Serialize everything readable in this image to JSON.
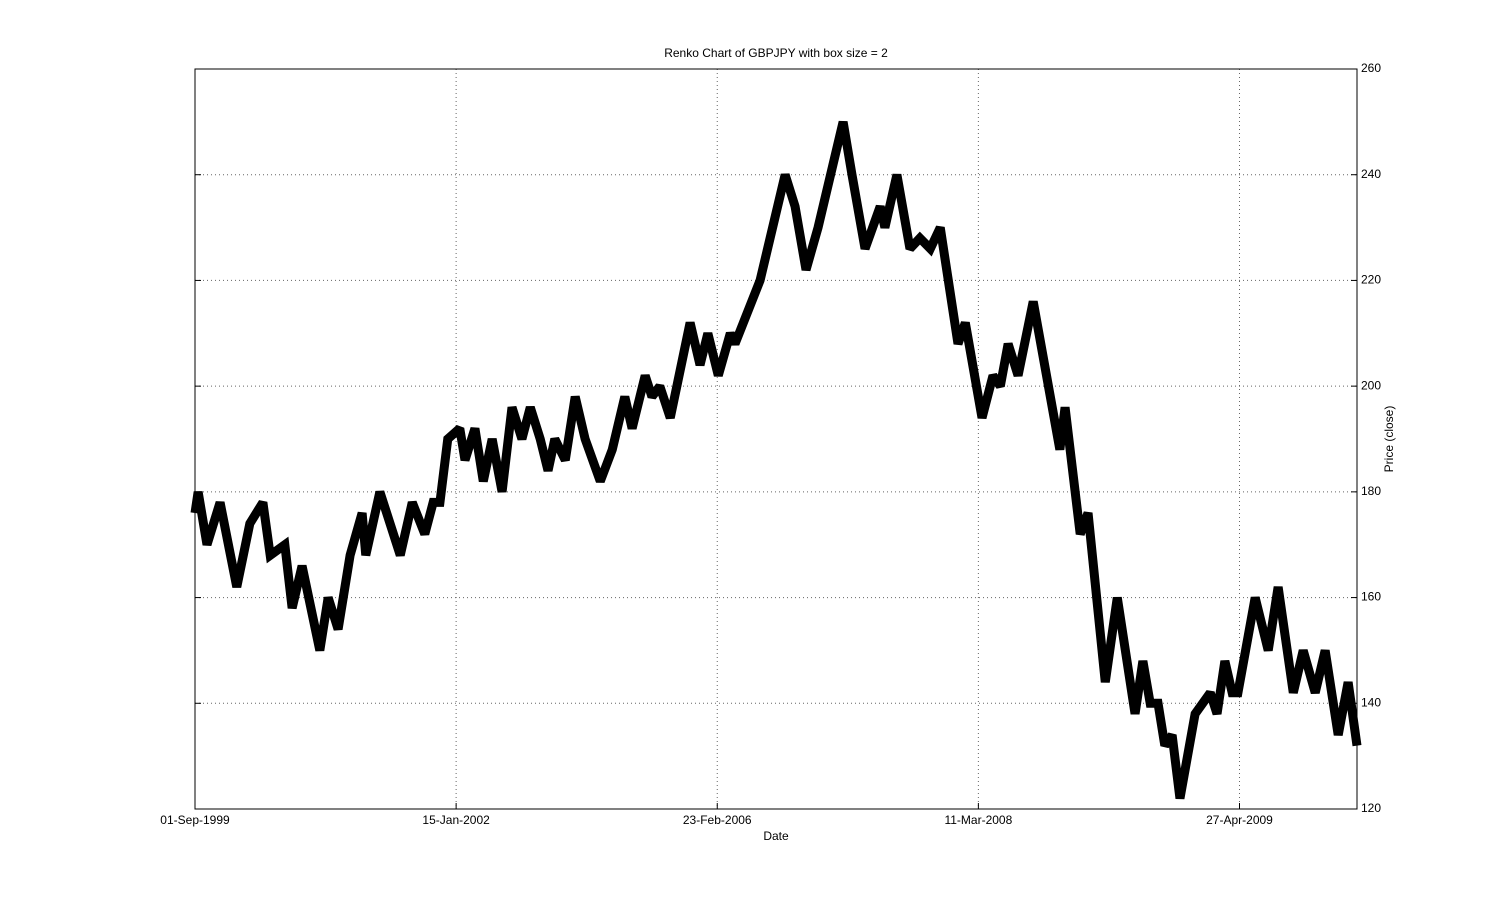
{
  "chart_data": {
    "type": "line",
    "title": "Renko Chart of GBPJPY with box size = 2",
    "x_label": "Date",
    "y_label": "Price (close)",
    "x": [
      0,
      6,
      23,
      48,
      80,
      105,
      130,
      144,
      172,
      186,
      205,
      239,
      255,
      274,
      297,
      320,
      327,
      354,
      393,
      416,
      440,
      456,
      469,
      484,
      507,
      517,
      536,
      552,
      569,
      588,
      607,
      626,
      642,
      661,
      676,
      689,
      709,
      728,
      747,
      776,
      799,
      823,
      837,
      862,
      875,
      890,
      910,
      948,
      967,
      982,
      1002,
      1025,
      1034,
      1082,
      1130,
      1149,
      1170,
      1193,
      1241,
      1258,
      1283,
      1312,
      1321,
      1344,
      1369,
      1388,
      1408,
      1427,
      1461,
      1475,
      1507,
      1528,
      1542,
      1557,
      1576,
      1605,
      1656,
      1666,
      1695,
      1710,
      1743,
      1766,
      1800,
      1815,
      1829,
      1844,
      1857,
      1871,
      1886,
      1915,
      1944,
      1957,
      1972,
      1986,
      1997,
      2030,
      2055,
      2074,
      2103,
      2122,
      2145,
      2164,
      2189,
      2208,
      2225
    ],
    "series": [
      {
        "name": "GBPJPY",
        "color": "#000000",
        "values": [
          176,
          180,
          170,
          178,
          162,
          174,
          178,
          168,
          170,
          158,
          166,
          150,
          160,
          154,
          168,
          176,
          168,
          180,
          168,
          178,
          172,
          178,
          178,
          190,
          192,
          186,
          192,
          182,
          190,
          180,
          196,
          190,
          196,
          190,
          184,
          190,
          186,
          198,
          190,
          182,
          188,
          198,
          192,
          202,
          198,
          200,
          194,
          212,
          204,
          210,
          202,
          210,
          208,
          220,
          240,
          234,
          222,
          230,
          250,
          240,
          226,
          234,
          230,
          240,
          226,
          228,
          226,
          230,
          208,
          212,
          194,
          202,
          200,
          208,
          202,
          216,
          188,
          196,
          172,
          176,
          144,
          160,
          138,
          148,
          140,
          140,
          132,
          134,
          122,
          138,
          142,
          138,
          148,
          142,
          142,
          160,
          150,
          162,
          142,
          150,
          142,
          150,
          134,
          144,
          132
        ]
      }
    ],
    "xlim": [
      0,
      2225
    ],
    "xticks": [
      {
        "value": 0,
        "label": "01-Sep-1999"
      },
      {
        "value": 500,
        "label": "15-Jan-2002"
      },
      {
        "value": 1000,
        "label": "23-Feb-2006"
      },
      {
        "value": 1500,
        "label": "11-Mar-2008"
      },
      {
        "value": 2000,
        "label": "27-Apr-2009"
      }
    ],
    "ylim": [
      120,
      260
    ],
    "yticks": [
      120,
      140,
      160,
      180,
      200,
      220,
      240,
      260
    ],
    "grid": true
  }
}
